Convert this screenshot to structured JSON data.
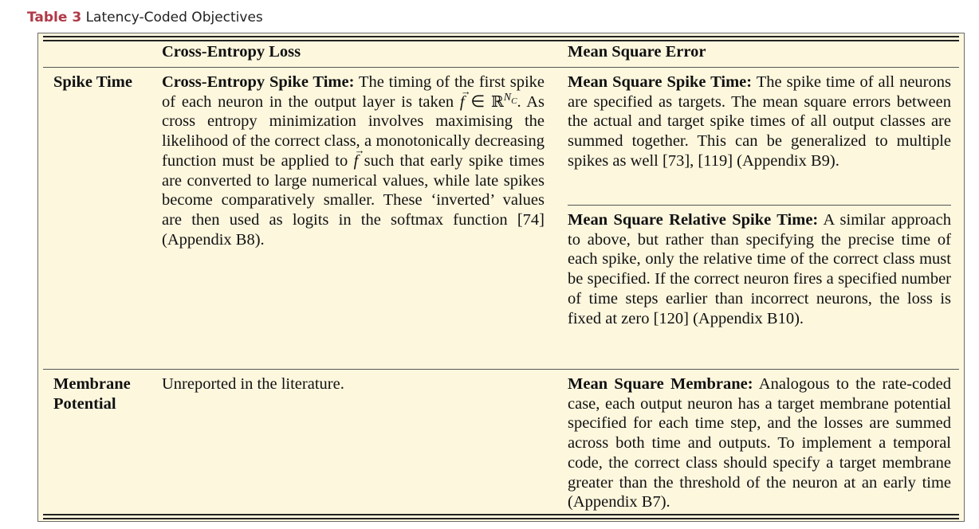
{
  "caption": {
    "label": "Table 3",
    "title": "Latency-Coded Objectives"
  },
  "columns": [
    "Cross-Entropy Loss",
    "Mean Square Error"
  ],
  "rows": [
    {
      "label": "Spike Time",
      "ce": {
        "title": "Cross-Entropy Spike Time:",
        "text_a": " The timing of the first spike of each neuron in the output layer is taken ",
        "math_f": "f",
        "math_in": " ∈ ",
        "math_R": "ℝ",
        "math_N": "N",
        "math_C": "C",
        "text_b": ". As cross entropy minimization involves maximising the likelihood of the correct class, a monotonically decreasing function must be applied to ",
        "text_c": " such that early spike times are converted to large numerical values, while late spikes become comparatively smaller. These ‘inverted’ values are then used as logits in the softmax function [74] (Appendix B8)."
      },
      "mse_a": {
        "title": "Mean Square Spike Time:",
        "text": " The spike time of all neurons are specified as targets. The mean square errors between the actual and target spike times of all output classes are summed together. This can be generalized to multiple spikes as well [73], [119] (Appendix B9)."
      },
      "mse_b": {
        "title": "Mean Square Relative Spike Time:",
        "text": " A similar approach to above, but rather than specifying the precise time of each spike, only the relative time of the correct class must be specified. If the correct neuron fires a specified number of time steps earlier than incorrect neurons, the loss is fixed at zero [120] (Appendix B10)."
      }
    },
    {
      "label_1": "Membrane",
      "label_2": "Potential",
      "ce_text": "Unreported in the literature.",
      "mse": {
        "title": "Mean Square Membrane:",
        "text": " Analogous to the rate-coded case, each output neuron has a target membrane potential specified for each time step, and the losses are summed across both time and outputs. To implement a temporal code, the correct class should specify a target membrane greater than the threshold of the neuron at an early time (Appendix B7)."
      }
    }
  ]
}
